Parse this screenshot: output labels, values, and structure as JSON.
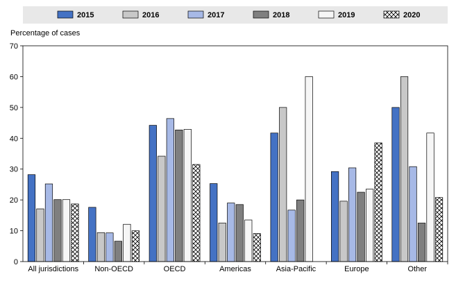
{
  "chart_data": {
    "type": "bar",
    "ylabel": "Percentage of cases",
    "xlabel": "",
    "title": "",
    "ylim": [
      0,
      70
    ],
    "yticks": [
      0,
      10,
      20,
      30,
      40,
      50,
      60,
      70
    ],
    "grid": false,
    "legend_placement": "top",
    "categories": [
      "All jurisdictions",
      "Non-OECD",
      "OECD",
      "Americas",
      "Asia-Pacific",
      "Europe",
      "Other"
    ],
    "series": [
      {
        "name": "2015",
        "color": "#4472c4",
        "pattern": "solid",
        "values": [
          28.2,
          17.6,
          44.2,
          25.3,
          41.7,
          29.2,
          50.0
        ]
      },
      {
        "name": "2016",
        "color": "#c8c8c8",
        "pattern": "solid",
        "values": [
          17.1,
          9.4,
          34.2,
          12.5,
          50.0,
          19.6,
          60.0
        ]
      },
      {
        "name": "2017",
        "color": "#a7b9e6",
        "pattern": "solid",
        "values": [
          25.2,
          9.3,
          46.4,
          19.0,
          16.7,
          30.4,
          30.8
        ]
      },
      {
        "name": "2018",
        "color": "#7f7f7f",
        "pattern": "solid",
        "values": [
          20.1,
          6.6,
          42.7,
          18.5,
          20.0,
          22.5,
          12.5
        ]
      },
      {
        "name": "2019",
        "color": "#f6f6f6",
        "pattern": "solid",
        "values": [
          20.1,
          12.1,
          42.9,
          13.5,
          60.0,
          23.5,
          41.7
        ]
      },
      {
        "name": "2020",
        "color": "#ffffff",
        "pattern": "crosshatch",
        "values": [
          18.7,
          10.0,
          31.5,
          9.1,
          null,
          38.5,
          20.8
        ]
      }
    ]
  }
}
